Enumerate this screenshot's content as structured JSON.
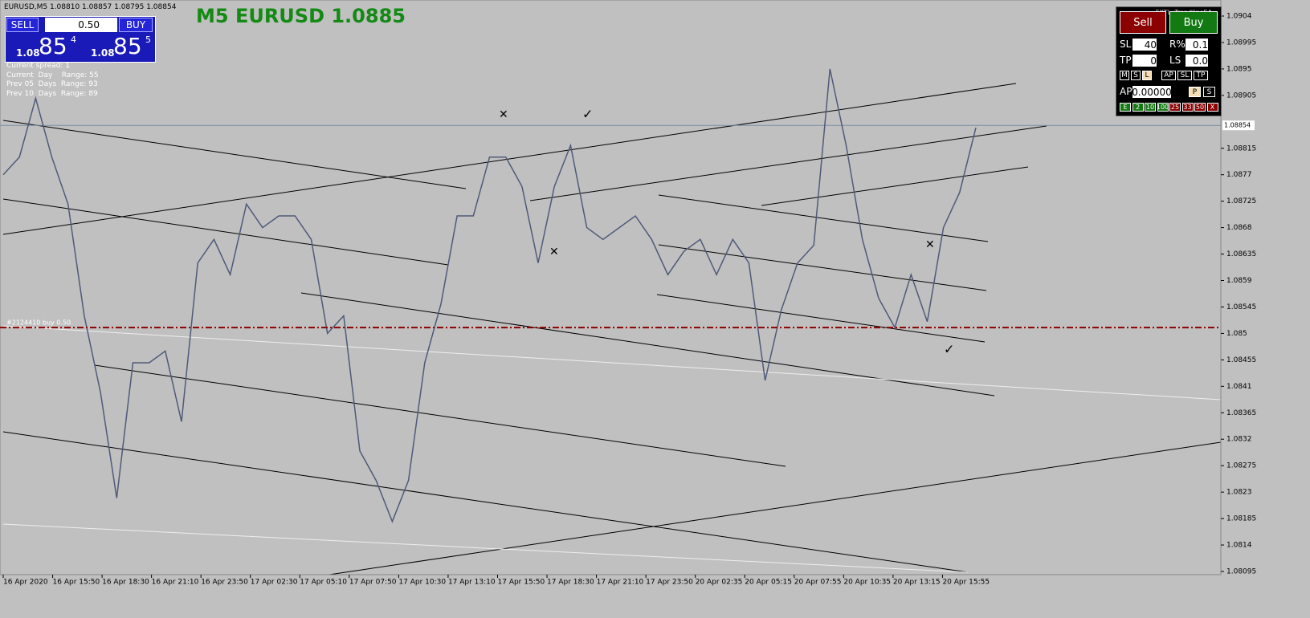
{
  "header": {
    "symbol_line": "EURUSD,M5  1.08810 1.08857 1.08795 1.08854",
    "title": "M5 EURUSD 1.0885"
  },
  "trade_panel": {
    "sell": "SELL",
    "lot": "0.50",
    "buy": "BUY",
    "bid_big": "1.08",
    "bid_pips": "85",
    "bid_frac": "4",
    "ask_big": "1.08",
    "ask_pips": "85",
    "ask_frac": "5",
    "info": [
      "Current spread: 1",
      "Current  Day    Range: 55",
      "Prev 05  Days  Range: 93",
      "Prev 10  Days  Range: 89"
    ]
  },
  "ea_panel": {
    "name": "FXTL_TrendlineEA",
    "sell": "Sell",
    "buy": "Buy",
    "sl_label": "SL",
    "sl": "40",
    "r_label": "R%",
    "r": "0.1",
    "tp_label": "TP",
    "tp": "0",
    "ls_label": "LS",
    "ls": "0.0",
    "modes": [
      "M",
      "S",
      "L"
    ],
    "modes2": [
      "AP",
      "SL",
      "TP"
    ],
    "ap_label": "AP",
    "ap": "0.00000",
    "ps": [
      "P",
      "S"
    ],
    "closes": [
      "E",
      "2",
      "10",
      "100",
      "25",
      "33",
      "50",
      "X"
    ]
  },
  "chart": {
    "order_label": "#2124410 buy 0.50",
    "order_price": 1.0851,
    "current_price": 1.08854,
    "current_label": "1.08854",
    "ylim": [
      1.08095,
      1.0904
    ],
    "price_axis": [
      1.0904,
      1.08995,
      1.0895,
      1.08905,
      1.08815,
      1.0877,
      1.08725,
      1.0868,
      1.08635,
      1.0859,
      1.08545,
      1.085,
      1.08455,
      1.0841,
      1.08365,
      1.0832,
      1.08275,
      1.0823,
      1.08185,
      1.0814,
      1.08095
    ],
    "time_axis": [
      "16 Apr 2020",
      "16 Apr 15:50",
      "16 Apr 18:30",
      "16 Apr 21:10",
      "16 Apr 23:50",
      "17 Apr 02:30",
      "17 Apr 05:10",
      "17 Apr 07:50",
      "17 Apr 10:30",
      "17 Apr 13:10",
      "17 Apr 15:50",
      "17 Apr 18:30",
      "17 Apr 21:10",
      "17 Apr 23:50",
      "20 Apr 02:35",
      "20 Apr 05:15",
      "20 Apr 07:55",
      "20 Apr 10:35",
      "20 Apr 13:15",
      "20 Apr 15:55"
    ],
    "closes": [
      1.0877,
      1.088,
      1.089,
      1.088,
      1.0872,
      1.0853,
      1.084,
      1.0822,
      1.0845,
      1.0845,
      1.0847,
      1.0835,
      1.0862,
      1.0866,
      1.086,
      1.0872,
      1.0868,
      1.087,
      1.087,
      1.0866,
      1.085,
      1.0853,
      1.083,
      1.0825,
      1.0818,
      1.0825,
      1.0845,
      1.0855,
      1.087,
      1.087,
      1.088,
      1.088,
      1.0875,
      1.0862,
      1.0875,
      1.0882,
      1.0868,
      1.0866,
      1.0868,
      1.087,
      1.0866,
      1.086,
      1.0864,
      1.0866,
      1.086,
      1.0866,
      1.0862,
      1.0842,
      1.0854,
      1.0862,
      1.0865,
      1.0895,
      1.0882,
      1.0866,
      1.0856,
      1.0851,
      1.086,
      1.0852,
      1.0868,
      1.0874,
      1.0885
    ]
  }
}
